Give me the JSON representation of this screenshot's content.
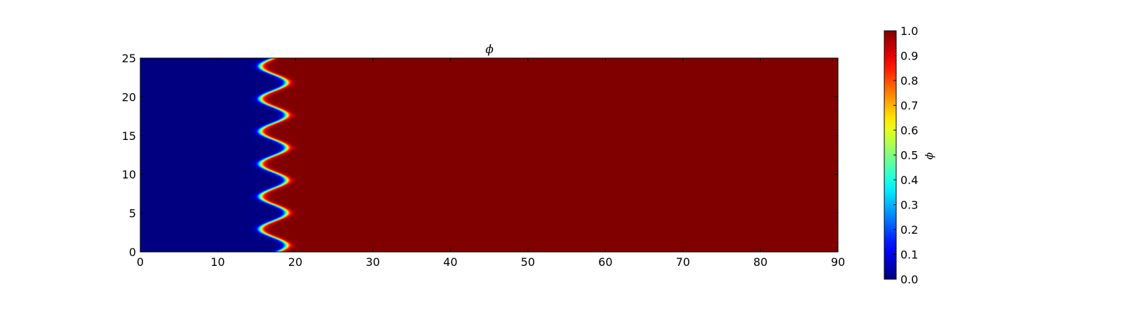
{
  "chart_data": {
    "type": "heatmap",
    "title": "ϕ",
    "xlabel": "",
    "ylabel": "",
    "xlim": [
      0,
      90
    ],
    "ylim": [
      0,
      25
    ],
    "xticks": [
      0,
      10,
      20,
      30,
      40,
      50,
      60,
      70,
      80,
      90
    ],
    "yticks": [
      0,
      5,
      10,
      15,
      20,
      25
    ],
    "grid": false,
    "colormap": "jet",
    "field": "ϕ",
    "value_range": [
      0.0,
      1.0
    ],
    "regions": [
      {
        "name": "low",
        "value": 0.0,
        "x_range": [
          0,
          15
        ]
      },
      {
        "name": "high",
        "value": 1.0,
        "x_range": [
          20,
          90
        ]
      }
    ],
    "interface": {
      "description": "wavy front between phi=0 and phi=1",
      "mean_x": 17.2,
      "amplitude_x": 1.7,
      "wavelength_y": 4.2,
      "interface_width": 1.1
    },
    "colorbar": {
      "label": "ϕ",
      "ticks": [
        0.0,
        0.1,
        0.2,
        0.3,
        0.4,
        0.5,
        0.6,
        0.7,
        0.8,
        0.9,
        1.0
      ],
      "tick_labels": [
        "0.0",
        "0.1",
        "0.2",
        "0.3",
        "0.4",
        "0.5",
        "0.6",
        "0.7",
        "0.8",
        "0.9",
        "1.0"
      ]
    }
  }
}
